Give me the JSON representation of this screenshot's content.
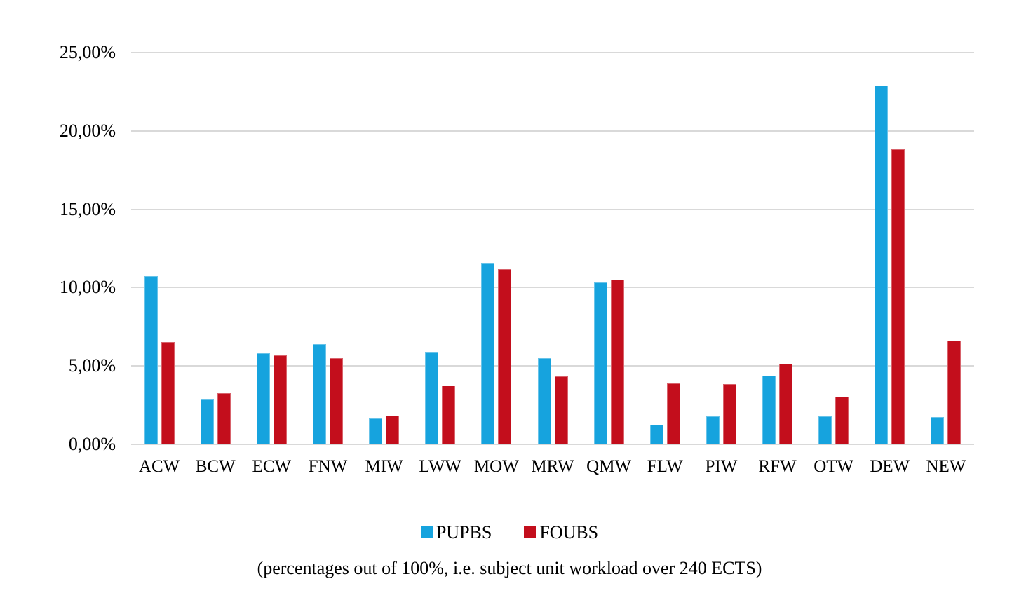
{
  "colors": {
    "pupbs": "#16a3de",
    "foubs": "#c30e1c",
    "gridline": "#d9d9d9",
    "text": "#000000",
    "background": "#ffffff"
  },
  "chart_data": {
    "type": "bar",
    "categories": [
      "ACW",
      "BCW",
      "ECW",
      "FNW",
      "MIW",
      "LWW",
      "MOW",
      "MRW",
      "QMW",
      "FLW",
      "PIW",
      "RFW",
      "OTW",
      "DEW",
      "NEW"
    ],
    "series": [
      {
        "name": "PUPBS",
        "color_key": "pupbs",
        "values": [
          10.75,
          2.9,
          5.8,
          6.4,
          1.65,
          5.9,
          11.6,
          5.5,
          10.35,
          1.25,
          1.8,
          4.4,
          1.8,
          22.9,
          1.75
        ]
      },
      {
        "name": "FOUBS",
        "color_key": "foubs",
        "values": [
          6.55,
          3.25,
          5.7,
          5.5,
          1.85,
          3.75,
          11.2,
          4.35,
          10.5,
          3.9,
          3.85,
          5.15,
          3.05,
          18.85,
          6.6
        ]
      }
    ],
    "title": "",
    "xlabel": "",
    "ylabel": "",
    "ylim": [
      0,
      25
    ],
    "ytick_step": 5,
    "ytick_labels": [
      "0,00%",
      "5,00%",
      "10,00%",
      "15,00%",
      "20,00%",
      "25,00%"
    ],
    "grid": true,
    "legend_position": "bottom",
    "caption": "(percentages out of 100%, i.e. subject unit workload over 240 ECTS)"
  }
}
